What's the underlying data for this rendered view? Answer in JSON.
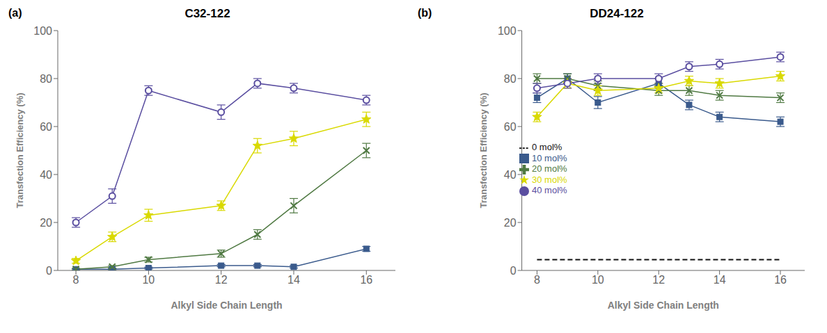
{
  "chart_data": [
    {
      "type": "line",
      "title": "C32-122",
      "annotations": [
        "(a)"
      ],
      "xlabel": "Alkyl Side Chain Length",
      "ylabel": "Transfection Efficiency (%)",
      "x": [
        8,
        9,
        10,
        12,
        13,
        14,
        16
      ],
      "xlim": [
        7.5,
        16.8
      ],
      "xticks": [
        8,
        10,
        12,
        14,
        16
      ],
      "ylim": [
        0,
        100
      ],
      "yticks": [
        0,
        20,
        40,
        60,
        80,
        100
      ],
      "grid": false,
      "series": [
        {
          "color": "#3a5a8c",
          "marker": "square",
          "line_style": "solid",
          "values": [
            0.5,
            0.5,
            1.0,
            2.0,
            2.0,
            1.5,
            9.0
          ],
          "errors": [
            0.3,
            0.3,
            0.4,
            0.5,
            0.5,
            0.5,
            1.0
          ]
        },
        {
          "color": "#4f7942",
          "marker": "x",
          "line_style": "solid",
          "values": [
            0.5,
            1.5,
            4.5,
            7.0,
            15.0,
            27.0,
            50.0
          ],
          "errors": [
            0.3,
            0.5,
            1.0,
            1.5,
            2.0,
            3.0,
            3.0
          ]
        },
        {
          "color": "#d9d900",
          "marker": "star",
          "line_style": "solid",
          "values": [
            4.0,
            14.0,
            23.0,
            27.0,
            52.0,
            55.0,
            63.0
          ],
          "errors": [
            1.0,
            2.0,
            2.5,
            2.0,
            3.0,
            3.0,
            3.0
          ]
        },
        {
          "color": "#5a4ea0",
          "marker": "hollow_circle",
          "line_style": "solid",
          "values": [
            20.0,
            31.0,
            75.0,
            66.0,
            78.0,
            76.0,
            71.0
          ],
          "errors": [
            2.0,
            3.0,
            2.0,
            3.0,
            2.0,
            2.0,
            2.0
          ]
        }
      ]
    },
    {
      "type": "line",
      "title": "DD24-122",
      "annotations": [
        "(b)"
      ],
      "xlabel": "Alkyl Side Chain Length",
      "ylabel": "Transfection Efficiency (%)",
      "x": [
        8,
        9,
        10,
        12,
        13,
        14,
        16
      ],
      "xlim": [
        7.5,
        16.8
      ],
      "xticks": [
        8,
        10,
        12,
        14,
        16
      ],
      "ylim": [
        0,
        100
      ],
      "yticks": [
        0,
        20,
        40,
        60,
        80,
        100
      ],
      "grid": false,
      "legend": "lower left",
      "series": [
        {
          "name": "0 mol%",
          "color": "#111111",
          "line_style": "dashed",
          "values": [
            4.5,
            4.5,
            4.5,
            4.5,
            4.5,
            4.5,
            4.5
          ]
        },
        {
          "name": "10 mol%",
          "color": "#3a5a8c",
          "marker": "square",
          "line_style": "solid",
          "values": [
            72.0,
            80.0,
            70.0,
            78.0,
            69.0,
            64.0,
            62.0
          ],
          "errors": [
            2.0,
            2.0,
            2.5,
            2.0,
            2.0,
            2.0,
            2.0
          ]
        },
        {
          "name": "20 mol%",
          "color": "#4f7942",
          "marker": "x",
          "line_style": "solid",
          "values": [
            80.0,
            80.0,
            77.0,
            75.0,
            75.0,
            73.0,
            72.0
          ],
          "errors": [
            2.0,
            2.0,
            2.0,
            2.0,
            2.0,
            2.0,
            2.0
          ]
        },
        {
          "name": "30 mol%",
          "color": "#d9d900",
          "marker": "star",
          "line_style": "solid",
          "values": [
            64.0,
            78.0,
            75.0,
            76.0,
            79.0,
            78.0,
            81.0
          ],
          "errors": [
            2.0,
            2.0,
            2.0,
            2.0,
            2.0,
            2.0,
            2.0
          ]
        },
        {
          "name": "40 mol%",
          "color": "#5a4ea0",
          "marker": "hollow_circle",
          "line_style": "solid",
          "values": [
            76.0,
            78.0,
            80.0,
            80.0,
            85.0,
            86.0,
            89.0
          ],
          "errors": [
            2.0,
            2.0,
            2.0,
            2.0,
            2.0,
            2.0,
            2.0
          ]
        }
      ]
    }
  ]
}
